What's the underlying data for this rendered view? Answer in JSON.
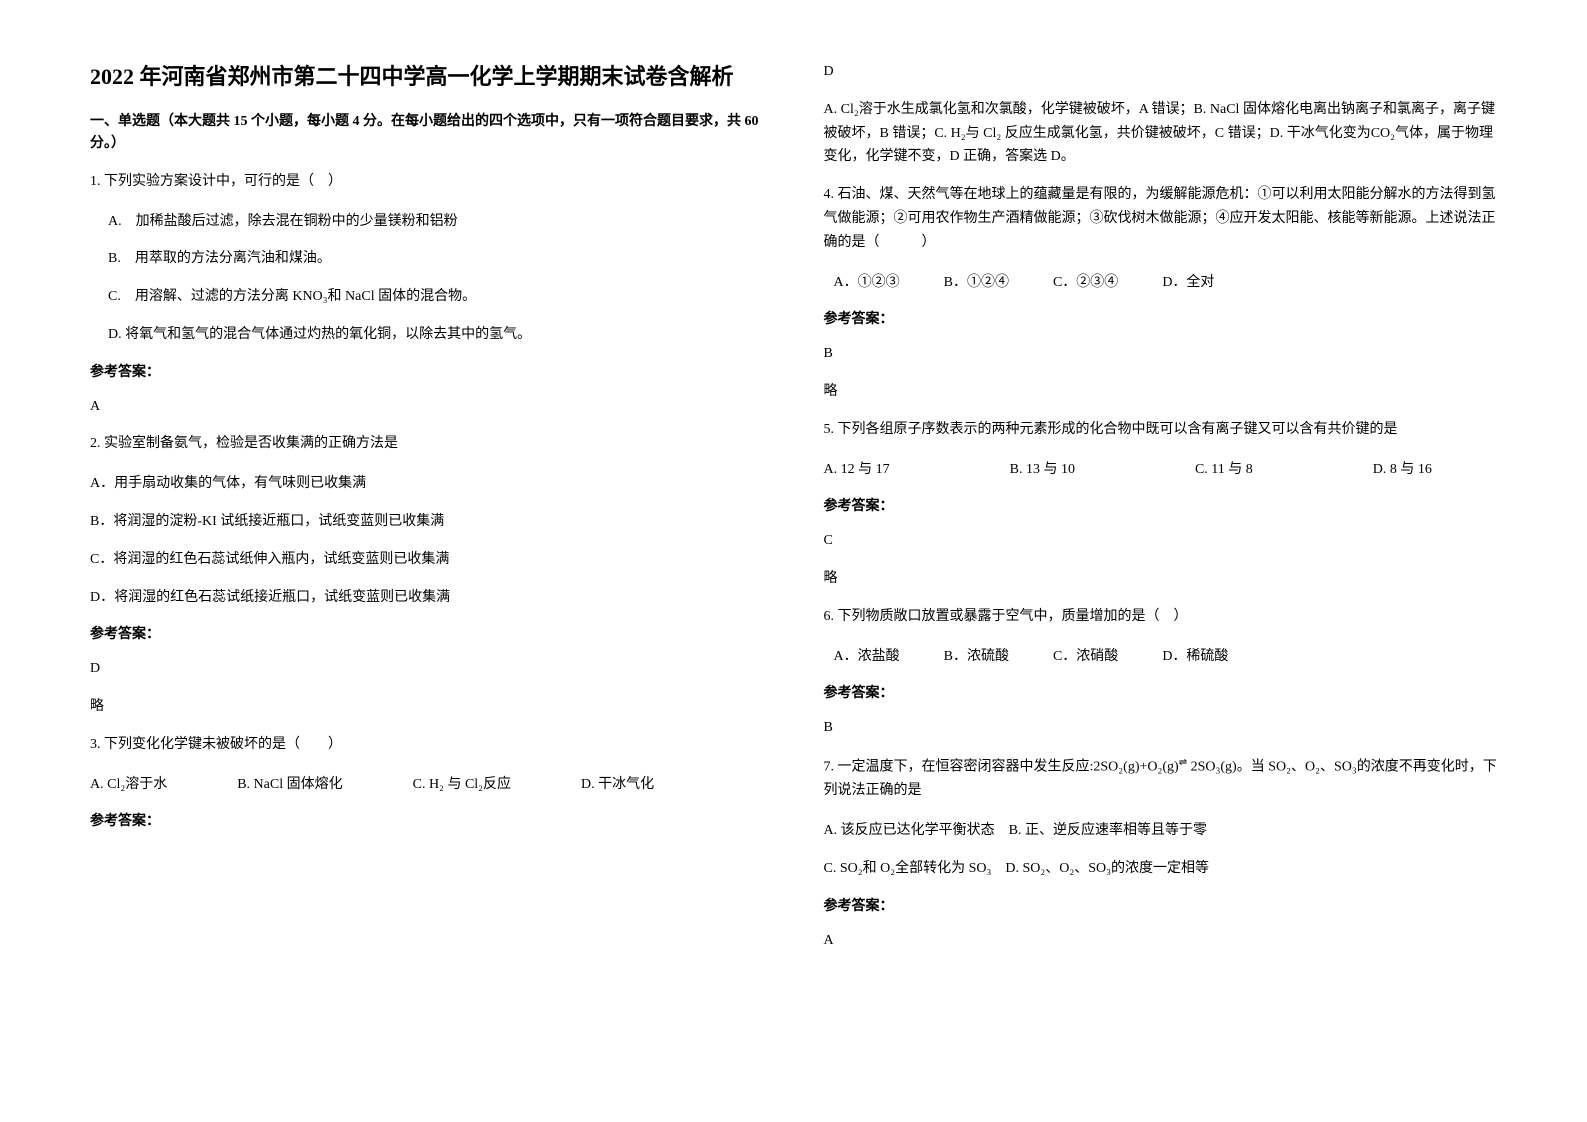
{
  "title": "2022 年河南省郑州市第二十四中学高一化学上学期期末试卷含解析",
  "section_header": "一、单选题（本大题共 15 个小题，每小题 4 分。在每小题给出的四个选项中，只有一项符合题目要求，共 60 分。）",
  "q1": {
    "stem": "1. 下列实验方案设计中，可行的是（　）",
    "a": "A.　加稀盐酸后过滤，除去混在铜粉中的少量镁粉和铝粉",
    "b": "B.　用萃取的方法分离汽油和煤油。",
    "c": "C.　用溶解、过滤的方法分离 KNO₃和 NaCl 固体的混合物。",
    "d": "D. 将氧气和氢气的混合气体通过灼热的氧化铜，以除去其中的氢气。",
    "answer_label": "参考答案：",
    "answer": "A"
  },
  "q2": {
    "stem": "2. 实验室制备氨气，检验是否收集满的正确方法是",
    "a": "A．用手扇动收集的气体，有气味则已收集满",
    "b": "B．将润湿的淀粉-KI 试纸接近瓶口，试纸变蓝则已收集满",
    "c": "C．将润湿的红色石蕊试纸伸入瓶内，试纸变蓝则已收集满",
    "d": "D．将润湿的红色石蕊试纸接近瓶口，试纸变蓝则已收集满",
    "answer_label": "参考答案：",
    "answer": "D",
    "note": "略"
  },
  "q3": {
    "stem": "3. 下列变化化学键未被破坏的是（　　）",
    "a": "A. Cl₂溶于水",
    "b": "B. NaCl 固体熔化",
    "c": "C. H₂ 与 Cl₂反应",
    "d": "D. 干冰气化",
    "answer_label": "参考答案：",
    "answer": "D",
    "explanation": "A. Cl₂溶于水生成氯化氢和次氯酸，化学键被破坏，A 错误；B. NaCl 固体熔化电离出钠离子和氯离子，离子键被破坏，B 错误；C. H₂与 Cl₂ 反应生成氯化氢，共价键被破坏，C 错误；D. 干冰气化变为CO₂气体，属于物理变化，化学键不变，D 正确，答案选 D。"
  },
  "q4": {
    "stem": "4. 石油、煤、天然气等在地球上的蕴藏量是有限的，为缓解能源危机：①可以利用太阳能分解水的方法得到氢气做能源；②可用农作物生产酒精做能源；③砍伐树木做能源；④应开发太阳能、核能等新能源。上述说法正确的是（　　　）",
    "a": "A．①②③",
    "b": "B．①②④",
    "c": "C．②③④",
    "d": "D．全对",
    "answer_label": "参考答案：",
    "answer": "B",
    "note": "略"
  },
  "q5": {
    "stem": "5. 下列各组原子序数表示的两种元素形成的化合物中既可以含有离子键又可以含有共价键的是",
    "a": "A. 12 与 17",
    "b": "B. 13 与 10",
    "c": "C. 11 与 8",
    "d": "D. 8 与 16",
    "answer_label": "参考答案：",
    "answer": "C",
    "note": "略"
  },
  "q6": {
    "stem": "6. 下列物质敞口放置或暴露于空气中，质量增加的是（　）",
    "a": "A．浓盐酸",
    "b": "B．浓硫酸",
    "c": "C．浓硝酸",
    "d": "D．稀硫酸",
    "answer_label": "参考答案：",
    "answer": "B"
  },
  "q7": {
    "stem_1": "7. 一定温度下，在恒容密闭容器中发生反应:2SO₂(g)+O₂(g)",
    "stem_2": " 2SO₃(g)。当 SO₂、O₂、SO₃的浓度不再变化时，下列说法正确的是",
    "a": "A. 该反应已达化学平衡状态",
    "b": "B. 正、逆反应速率相等且等于零",
    "c": "C. SO₂和 O₂全部转化为 SO₃",
    "d": "D. SO₂、O₂、SO₃的浓度一定相等",
    "answer_label": "参考答案：",
    "answer": "A"
  },
  "colors": {
    "text": "#000000",
    "background": "#ffffff"
  },
  "fonts": {
    "body_size": 14,
    "title_size": 22,
    "family": "SimSun"
  }
}
